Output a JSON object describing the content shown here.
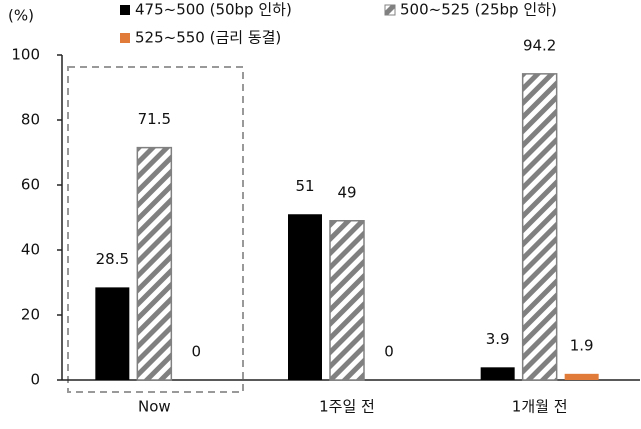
{
  "chart_data": {
    "type": "bar",
    "unit_label": "(%)",
    "categories": [
      "Now",
      "1주일 전",
      "1개월 전"
    ],
    "series": [
      {
        "name": "475~500 (50bp 인하)",
        "color": "#000000",
        "values": [
          28.5,
          51,
          3.9
        ]
      },
      {
        "name": "500~525 (25bp 인하)",
        "color": "#808080",
        "hatch": true,
        "values": [
          71.5,
          49,
          94.2
        ]
      },
      {
        "name": "525~550 (금리 동결)",
        "color": "#e07b39",
        "values": [
          0,
          0,
          1.9
        ]
      }
    ],
    "ylim": [
      0,
      100
    ],
    "yticks": [
      0,
      20,
      40,
      60,
      80,
      100
    ],
    "grid": false,
    "legend": "top"
  }
}
